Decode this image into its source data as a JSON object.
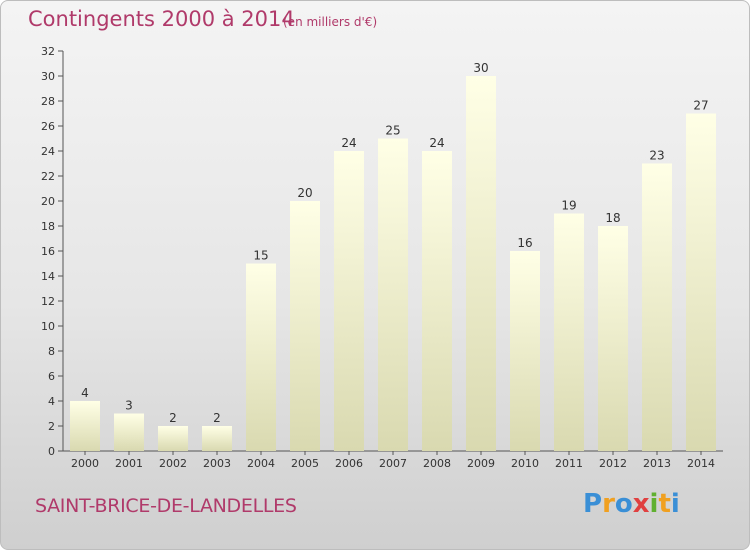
{
  "chart_data": {
    "type": "bar",
    "title": "Contingents 2000 à 2014",
    "subtitle": "(en milliers d'€)",
    "categories": [
      "2000",
      "2001",
      "2002",
      "2003",
      "2004",
      "2005",
      "2006",
      "2007",
      "2008",
      "2009",
      "2010",
      "2011",
      "2012",
      "2013",
      "2014"
    ],
    "values": [
      4,
      3,
      2,
      2,
      15,
      20,
      24,
      25,
      24,
      30,
      16,
      19,
      18,
      23,
      27
    ],
    "ylim": [
      0,
      32
    ],
    "yticks": [
      0,
      2,
      4,
      6,
      8,
      10,
      12,
      14,
      16,
      18,
      20,
      22,
      24,
      26,
      28,
      30,
      32
    ],
    "grid": false,
    "legend": "none",
    "bar_color_top": "#ffffe6",
    "bar_color_bottom": "#d9d9b0"
  },
  "footer": {
    "city": "SAINT-BRICE-DE-LANDELLES",
    "logo_text": "Proxiti"
  },
  "colors": {
    "title": "#b03a6a",
    "logo": [
      "#3a8fd6",
      "#f0a020",
      "#3a8fd6",
      "#e04040",
      "#60b030",
      "#f0a020",
      "#3a8fd6"
    ]
  }
}
